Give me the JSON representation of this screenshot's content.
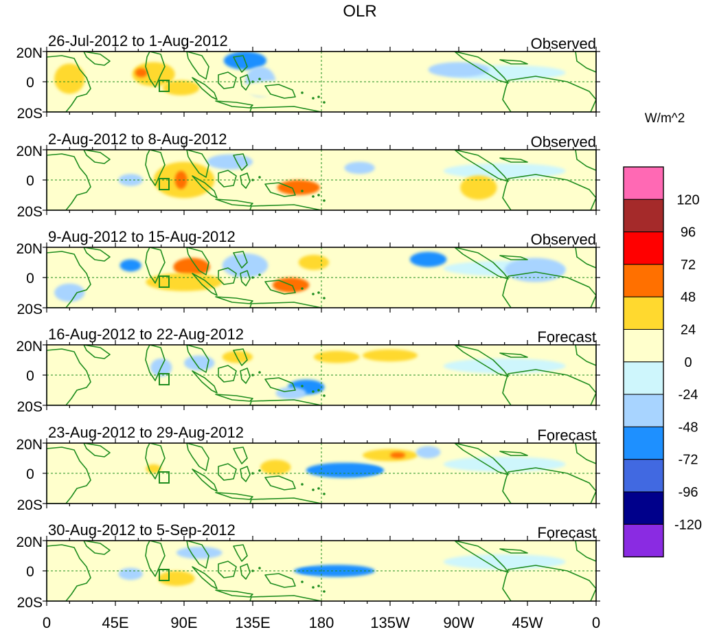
{
  "chart_data": {
    "type": "heatmap",
    "title": "OLR",
    "units_label": "W/m^2",
    "x_ticks": [
      "0",
      "45E",
      "90E",
      "135E",
      "180",
      "135W",
      "90W",
      "45W",
      "0"
    ],
    "y_ticks": [
      "20N",
      "0",
      "20S"
    ],
    "x_range_deg": [
      0,
      360
    ],
    "y_range_deg": [
      -20,
      20
    ],
    "colorbar": {
      "levels": [
        "120",
        "96",
        "72",
        "48",
        "24",
        "0",
        "-24",
        "-48",
        "-72",
        "-96",
        "-120"
      ],
      "colors": [
        "#ff69b4",
        "#a52a2a",
        "#ff0000",
        "#ff7000",
        "#ffd92f",
        "#ffffcc",
        "#cef6fc",
        "#a8d4ff",
        "#1e90ff",
        "#4169e1",
        "#00008b",
        "#8a2be2"
      ]
    },
    "panels": [
      {
        "period": "26-Jul-2012 to 1-Aug-2012",
        "kind": "Observed",
        "anomalies": [
          {
            "lon": 70,
            "lat": 5,
            "rlon": 14,
            "rlat": 8,
            "value": 30
          },
          {
            "lon": 62,
            "lat": 6,
            "rlon": 4,
            "rlat": 3,
            "value": 55
          },
          {
            "lon": 88,
            "lat": -4,
            "rlon": 12,
            "rlat": 5,
            "value": 28
          },
          {
            "lon": 130,
            "lat": 14,
            "rlon": 14,
            "rlat": 6,
            "value": -55
          },
          {
            "lon": 140,
            "lat": 0,
            "rlon": 10,
            "rlat": 10,
            "value": -30
          },
          {
            "lon": 15,
            "lat": 2,
            "rlon": 10,
            "rlat": 10,
            "value": 28
          },
          {
            "lon": 160,
            "lat": -5,
            "rlon": 35,
            "rlat": 6,
            "value": 12
          },
          {
            "lon": 270,
            "lat": 8,
            "rlon": 20,
            "rlat": 5,
            "value": -26
          },
          {
            "lon": 300,
            "lat": -12,
            "rlon": 15,
            "rlat": 8,
            "value": 14
          }
        ]
      },
      {
        "period": "2-Aug-2012 to 8-Aug-2012",
        "kind": "Observed",
        "anomalies": [
          {
            "lon": 90,
            "lat": 0,
            "rlon": 20,
            "rlat": 12,
            "value": 40
          },
          {
            "lon": 88,
            "lat": 0,
            "rlon": 4,
            "rlat": 6,
            "value": 60
          },
          {
            "lon": 165,
            "lat": -5,
            "rlon": 14,
            "rlat": 5,
            "value": 55
          },
          {
            "lon": 283,
            "lat": -5,
            "rlon": 12,
            "rlat": 8,
            "value": 35
          },
          {
            "lon": 55,
            "lat": 0,
            "rlon": 8,
            "rlat": 4,
            "value": -28
          },
          {
            "lon": 120,
            "lat": 12,
            "rlon": 15,
            "rlat": 5,
            "value": -25
          },
          {
            "lon": 205,
            "lat": 8,
            "rlon": 10,
            "rlat": 4,
            "value": -26
          },
          {
            "lon": 240,
            "lat": -3,
            "rlon": 25,
            "rlat": 8,
            "value": 14
          }
        ]
      },
      {
        "period": "9-Aug-2012 to 15-Aug-2012",
        "kind": "Observed",
        "anomalies": [
          {
            "lon": 95,
            "lat": 7,
            "rlon": 12,
            "rlat": 6,
            "value": 62
          },
          {
            "lon": 90,
            "lat": -3,
            "rlon": 25,
            "rlat": 6,
            "value": 32
          },
          {
            "lon": 160,
            "lat": -5,
            "rlon": 12,
            "rlat": 5,
            "value": 60
          },
          {
            "lon": 55,
            "lat": 8,
            "rlon": 7,
            "rlat": 4,
            "value": -55
          },
          {
            "lon": 130,
            "lat": 8,
            "rlon": 15,
            "rlat": 8,
            "value": -30
          },
          {
            "lon": 250,
            "lat": 12,
            "rlon": 12,
            "rlat": 5,
            "value": -50
          },
          {
            "lon": 175,
            "lat": 10,
            "rlon": 10,
            "rlat": 5,
            "value": 28
          },
          {
            "lon": 320,
            "lat": 5,
            "rlon": 20,
            "rlat": 8,
            "value": -28
          },
          {
            "lon": 15,
            "lat": -10,
            "rlon": 10,
            "rlat": 6,
            "value": -26
          }
        ]
      },
      {
        "period": "16-Aug-2012 to 22-Aug-2012",
        "kind": "Forecast",
        "anomalies": [
          {
            "lon": 225,
            "lat": 13,
            "rlon": 18,
            "rlat": 4,
            "value": 32
          },
          {
            "lon": 190,
            "lat": 12,
            "rlon": 15,
            "rlat": 4,
            "value": 28
          },
          {
            "lon": 125,
            "lat": 12,
            "rlon": 10,
            "rlat": 4,
            "value": 28
          },
          {
            "lon": 170,
            "lat": -8,
            "rlon": 12,
            "rlat": 5,
            "value": -60
          },
          {
            "lon": 160,
            "lat": -12,
            "rlon": 10,
            "rlat": 4,
            "value": -40
          },
          {
            "lon": 75,
            "lat": 5,
            "rlon": 7,
            "rlat": 6,
            "value": -28
          },
          {
            "lon": 100,
            "lat": 8,
            "rlon": 10,
            "rlat": 5,
            "value": -26
          },
          {
            "lon": 40,
            "lat": -2,
            "rlon": 20,
            "rlat": 8,
            "value": 12
          }
        ]
      },
      {
        "period": "23-Aug-2012 to 29-Aug-2012",
        "kind": "Forecast",
        "anomalies": [
          {
            "lon": 195,
            "lat": 2,
            "rlon": 25,
            "rlat": 5,
            "value": -55
          },
          {
            "lon": 205,
            "lat": 2,
            "rlon": 16,
            "rlat": 3,
            "value": -70
          },
          {
            "lon": 225,
            "lat": 12,
            "rlon": 18,
            "rlat": 4,
            "value": 32
          },
          {
            "lon": 230,
            "lat": 12,
            "rlon": 5,
            "rlat": 2,
            "value": 55
          },
          {
            "lon": 150,
            "lat": 4,
            "rlon": 10,
            "rlat": 5,
            "value": 30
          },
          {
            "lon": 95,
            "lat": 10,
            "rlon": 15,
            "rlat": 4,
            "value": 14
          },
          {
            "lon": 70,
            "lat": 3,
            "rlon": 5,
            "rlat": 3,
            "value": 30
          },
          {
            "lon": 250,
            "lat": 14,
            "rlon": 8,
            "rlat": 4,
            "value": -26
          }
        ]
      },
      {
        "period": "30-Aug-2012 to 5-Sep-2012",
        "kind": "Forecast",
        "anomalies": [
          {
            "lon": 190,
            "lat": 0,
            "rlon": 25,
            "rlat": 4,
            "value": -50
          },
          {
            "lon": 170,
            "lat": 0,
            "rlon": 8,
            "rlat": 2,
            "value": -60
          },
          {
            "lon": 85,
            "lat": -5,
            "rlon": 12,
            "rlat": 5,
            "value": 28
          },
          {
            "lon": 55,
            "lat": -2,
            "rlon": 8,
            "rlat": 4,
            "value": -30
          },
          {
            "lon": 120,
            "lat": 8,
            "rlon": 15,
            "rlat": 5,
            "value": 14
          },
          {
            "lon": 230,
            "lat": 10,
            "rlon": 30,
            "rlat": 6,
            "value": 12
          },
          {
            "lon": 100,
            "lat": 12,
            "rlon": 15,
            "rlat": 4,
            "value": -26
          }
        ]
      }
    ]
  }
}
